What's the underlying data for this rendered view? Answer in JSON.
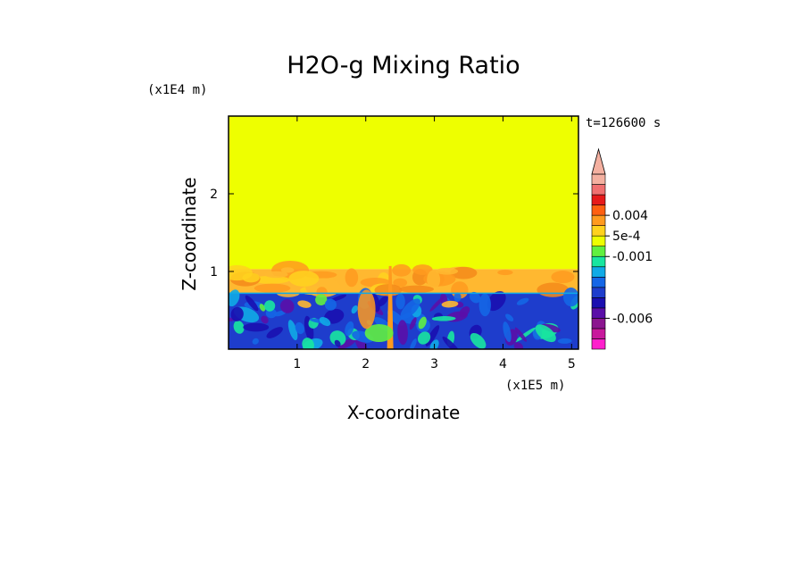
{
  "chart_data": {
    "type": "heatmap",
    "title": "H2O-g Mixing Ratio",
    "xlabel": "X-coordinate",
    "ylabel": "Z-coordinate",
    "x_scale_label": "(x1E5 m)",
    "y_scale_label": "(x1E4 m)",
    "time_label": "t=126600 s",
    "xlim": [
      0,
      5.1
    ],
    "ylim": [
      0,
      3.0
    ],
    "x_ticks": [
      1,
      2,
      3,
      4,
      5
    ],
    "y_ticks": [
      1,
      2
    ],
    "inversion_height": 0.72,
    "moist_layer_top": 1.03,
    "plume_x": 2.35,
    "plume_top": 1.07,
    "regions": [
      {
        "name": "upper-layer",
        "z_min": 1.03,
        "z_max": 3.0,
        "color": "#EEFF00"
      },
      {
        "name": "mixing-layer",
        "z_min": 0.72,
        "z_max": 1.03,
        "color": "#FFB830"
      },
      {
        "name": "lower-layer",
        "z_min": 0.0,
        "z_max": 0.72,
        "color": "#1E3DCC"
      }
    ],
    "colorbar": {
      "colors": [
        "#FF1FCC",
        "#C8189C",
        "#8B158F",
        "#5A0EA8",
        "#1A0FB0",
        "#1E3DCC",
        "#1466E6",
        "#10AAE6",
        "#18E6A0",
        "#60F040",
        "#EEFF00",
        "#FFD21E",
        "#FF9A1E",
        "#FF5F10",
        "#E61A1A",
        "#F07070",
        "#F4B0A0"
      ],
      "labels": [
        "0.004",
        "5e-4",
        "-0.001",
        "-0.006"
      ],
      "label_values": [
        0.004,
        0.0005,
        -0.001,
        -0.006
      ],
      "extend": "max"
    }
  }
}
